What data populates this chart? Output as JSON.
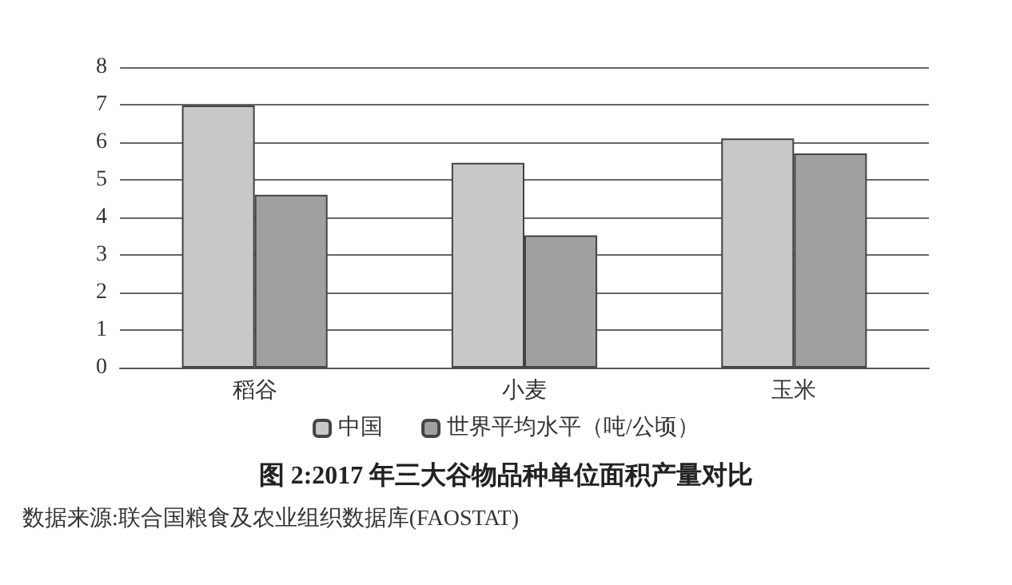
{
  "chart_data": {
    "type": "bar",
    "title": "图 2:2017 年三大谷物品种单位面积产量对比",
    "annotations": [
      "数据来源:联合国粮食及农业组织数据库(FAOSTAT)"
    ],
    "categories": [
      "稻谷",
      "小麦",
      "玉米"
    ],
    "series": [
      {
        "name": "中国",
        "color": "#c8c8c8",
        "values": [
          6.98,
          5.45,
          6.1
        ]
      },
      {
        "name": "世界平均水平（吨/公顷）",
        "color": "#a0a0a0",
        "values": [
          4.6,
          3.52,
          5.7
        ]
      }
    ],
    "ylim": [
      0,
      8
    ],
    "yticks": [
      0,
      1,
      2,
      3,
      4,
      5,
      6,
      7,
      8
    ],
    "grid": "y",
    "legend": "bottom"
  }
}
